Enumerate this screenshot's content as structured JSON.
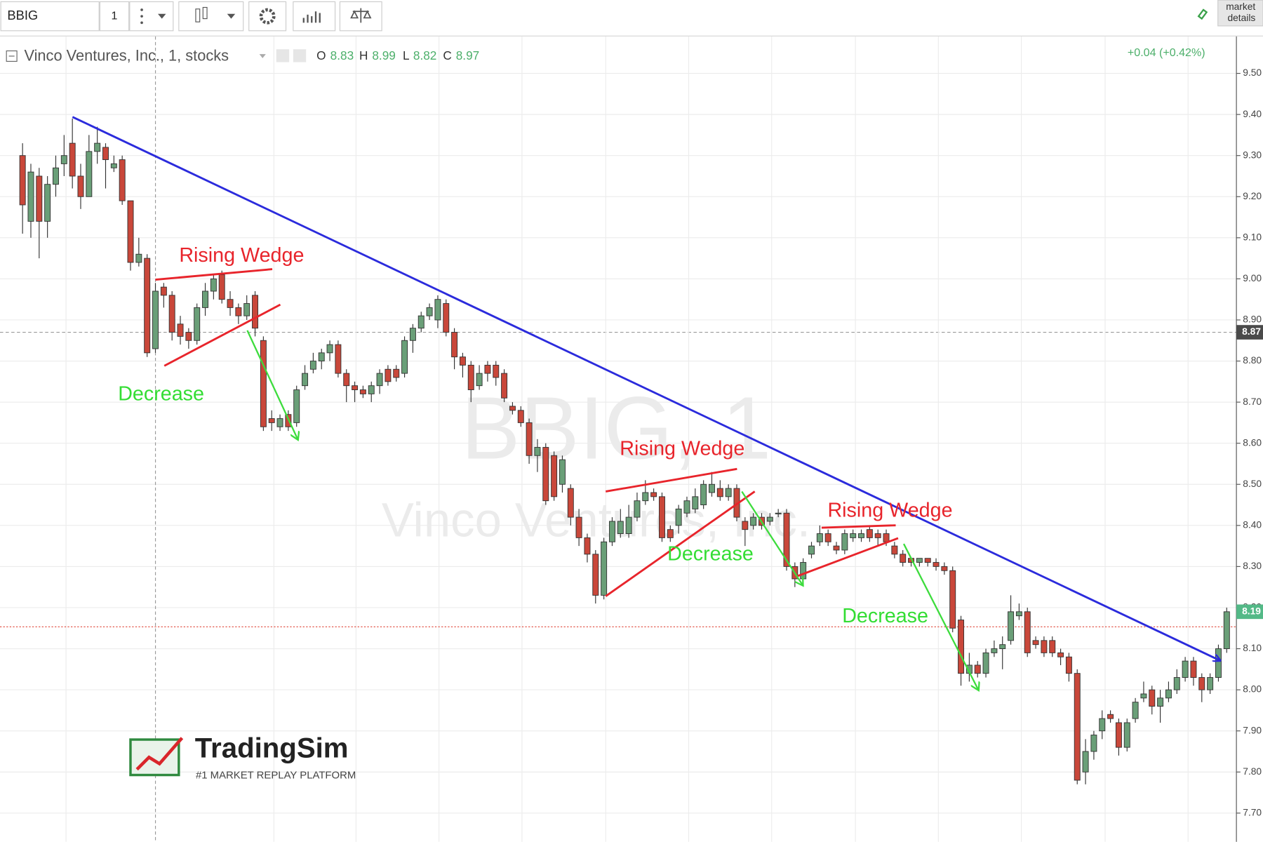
{
  "toolbar": {
    "symbol": "BBIG",
    "interval": "1",
    "market_details": [
      "market",
      "details"
    ]
  },
  "chart_data": {
    "type": "candlestick",
    "title": "Vinco Ventures, Inc., 1, stocks",
    "ohlc_letters": [
      "O",
      "H",
      "L",
      "C"
    ],
    "change": "+0.04 (+0.42%)",
    "watermark": {
      "symbol_interval": "BBIG, 1",
      "name": "Vinco Ventures, Inc."
    },
    "up_color": "#6a9f78",
    "down_color": "#c9473a",
    "crosshair_price": 8.87,
    "ylim": [
      7.63,
      9.59
    ],
    "yticks": [
      {
        "value": 7.7,
        "label": "7.70"
      },
      {
        "value": 7.8,
        "label": "7.80"
      },
      {
        "value": 7.9,
        "label": "7.90"
      },
      {
        "value": 8.0,
        "label": "8.00"
      },
      {
        "value": 8.1,
        "label": "8.10"
      },
      {
        "value": 8.2,
        "label": "8.20"
      },
      {
        "value": 8.3,
        "label": "8.30"
      },
      {
        "value": 8.4,
        "label": "8.40"
      },
      {
        "value": 8.5,
        "label": "8.50"
      },
      {
        "value": 8.6,
        "label": "8.60"
      },
      {
        "value": 8.7,
        "label": "8.70"
      },
      {
        "value": 8.8,
        "label": "8.80"
      },
      {
        "value": 8.9,
        "label": "8.90"
      },
      {
        "value": 9.0,
        "label": "9.00"
      },
      {
        "value": 9.1,
        "label": "9.10"
      },
      {
        "value": 9.2,
        "label": "9.20"
      },
      {
        "value": 9.3,
        "label": "9.30"
      },
      {
        "value": 9.4,
        "label": "9.40"
      },
      {
        "value": 9.5,
        "label": "9.50"
      }
    ],
    "grid": true,
    "open": [
      9.3,
      9.14,
      9.25,
      9.14,
      9.23,
      9.28,
      9.33,
      9.25,
      9.2,
      9.31,
      9.32,
      9.27,
      9.29,
      9.19,
      9.04,
      9.05,
      8.83,
      8.98,
      8.96,
      8.89,
      8.87,
      8.85,
      8.93,
      8.97,
      9.01,
      8.95,
      8.93,
      8.91,
      8.96,
      8.85,
      8.66,
      8.64,
      8.67,
      8.65,
      8.74,
      8.78,
      8.8,
      8.82,
      8.84,
      8.77,
      8.74,
      8.73,
      8.72,
      8.74,
      8.78,
      8.78,
      8.77,
      8.85,
      8.88,
      8.91,
      8.9,
      8.94,
      8.87,
      8.81,
      8.79,
      8.74,
      8.79,
      8.79,
      8.77,
      8.69,
      8.68,
      8.65,
      8.57,
      8.59,
      8.57,
      8.5,
      8.49,
      8.42,
      8.37,
      8.33,
      8.23,
      8.36,
      8.38,
      8.38,
      8.42,
      8.46,
      8.48,
      8.47,
      8.39,
      8.4,
      8.43,
      8.44,
      8.45,
      8.48,
      8.49,
      8.47,
      8.49,
      8.41,
      8.4,
      8.42,
      8.41,
      8.43,
      8.43,
      8.3,
      8.27,
      8.33,
      8.36,
      8.38,
      8.35,
      8.34,
      8.37,
      8.37,
      8.39,
      8.38,
      8.38,
      8.35,
      8.33,
      8.32,
      8.31,
      8.32,
      8.31,
      8.3,
      8.29,
      8.17,
      8.04,
      8.06,
      8.04,
      8.09,
      8.1,
      8.12,
      8.18,
      8.19,
      8.12,
      8.12,
      8.12,
      8.09,
      8.08,
      8.04,
      7.8,
      7.85,
      7.9,
      7.94,
      7.92,
      7.86,
      7.93,
      7.98,
      8.0,
      7.96,
      7.98,
      8.0,
      8.03,
      8.07,
      8.03,
      8.0,
      8.03,
      8.1
    ],
    "high": [
      9.33,
      9.28,
      9.27,
      9.25,
      9.3,
      9.35,
      9.39,
      9.28,
      9.35,
      9.37,
      9.33,
      9.3,
      9.3,
      9.19,
      9.1,
      9.06,
      8.99,
      8.99,
      8.97,
      8.91,
      8.88,
      8.94,
      8.99,
      9.01,
      9.02,
      8.97,
      8.94,
      8.96,
      8.97,
      8.86,
      8.68,
      8.67,
      8.68,
      8.74,
      8.79,
      8.82,
      8.83,
      8.85,
      8.85,
      8.78,
      8.75,
      8.74,
      8.75,
      8.78,
      8.79,
      8.79,
      8.86,
      8.89,
      8.92,
      8.94,
      8.96,
      8.95,
      8.88,
      8.82,
      8.8,
      8.79,
      8.8,
      8.8,
      8.78,
      8.7,
      8.69,
      8.66,
      8.61,
      8.6,
      8.58,
      8.57,
      8.5,
      8.44,
      8.38,
      8.34,
      8.37,
      8.42,
      8.44,
      8.45,
      8.48,
      8.51,
      8.49,
      8.48,
      8.4,
      8.45,
      8.47,
      8.49,
      8.51,
      8.53,
      8.51,
      8.5,
      8.5,
      8.42,
      8.43,
      8.43,
      8.43,
      8.44,
      8.44,
      8.31,
      8.32,
      8.36,
      8.4,
      8.39,
      8.36,
      8.39,
      8.39,
      8.39,
      8.4,
      8.39,
      8.39,
      8.36,
      8.34,
      8.32,
      8.32,
      8.32,
      8.32,
      8.31,
      8.3,
      8.18,
      8.09,
      8.07,
      8.1,
      8.12,
      8.13,
      8.23,
      8.21,
      8.2,
      8.13,
      8.13,
      8.13,
      8.1,
      8.09,
      8.05,
      7.88,
      7.9,
      7.95,
      7.95,
      7.93,
      7.93,
      7.98,
      8.02,
      8.01,
      8.0,
      8.02,
      8.05,
      8.08,
      8.08,
      8.04,
      8.04,
      8.11,
      8.2
    ],
    "low": [
      9.11,
      9.1,
      9.05,
      9.1,
      9.2,
      9.25,
      9.22,
      9.17,
      9.2,
      9.28,
      9.22,
      9.26,
      9.18,
      9.02,
      9.03,
      8.81,
      8.82,
      8.93,
      8.85,
      8.84,
      8.83,
      8.84,
      8.91,
      8.95,
      8.94,
      8.91,
      8.89,
      8.9,
      8.86,
      8.63,
      8.63,
      8.63,
      8.63,
      8.64,
      8.73,
      8.77,
      8.78,
      8.8,
      8.76,
      8.7,
      8.7,
      8.71,
      8.7,
      8.72,
      8.74,
      8.75,
      8.76,
      8.82,
      8.87,
      8.9,
      8.88,
      8.86,
      8.78,
      8.76,
      8.7,
      8.73,
      8.75,
      8.74,
      8.7,
      8.67,
      8.64,
      8.55,
      8.53,
      8.45,
      8.46,
      8.48,
      8.4,
      8.35,
      8.31,
      8.21,
      8.22,
      8.35,
      8.37,
      8.37,
      8.41,
      8.45,
      8.46,
      8.36,
      8.36,
      8.38,
      8.42,
      8.43,
      8.44,
      8.47,
      8.46,
      8.46,
      8.41,
      8.35,
      8.39,
      8.39,
      8.4,
      8.42,
      8.29,
      8.25,
      8.26,
      8.32,
      8.35,
      8.35,
      8.33,
      8.33,
      8.36,
      8.36,
      8.36,
      8.35,
      8.35,
      8.32,
      8.3,
      8.3,
      8.3,
      8.3,
      8.29,
      8.28,
      8.14,
      8.01,
      8.02,
      8.03,
      8.03,
      8.08,
      8.05,
      8.11,
      8.17,
      8.08,
      8.1,
      8.08,
      8.08,
      8.06,
      8.02,
      7.77,
      7.77,
      7.83,
      7.88,
      7.92,
      7.84,
      7.85,
      7.92,
      7.97,
      7.94,
      7.92,
      7.97,
      7.99,
      8.02,
      8.01,
      7.97,
      7.99,
      8.02,
      8.09
    ],
    "close": [
      9.18,
      9.26,
      9.14,
      9.23,
      9.27,
      9.3,
      9.25,
      9.2,
      9.31,
      9.33,
      9.29,
      9.28,
      9.19,
      9.04,
      9.06,
      8.82,
      8.97,
      8.96,
      8.87,
      8.86,
      8.85,
      8.93,
      8.97,
      9.0,
      8.95,
      8.93,
      8.91,
      8.94,
      8.88,
      8.64,
      8.65,
      8.66,
      8.64,
      8.73,
      8.77,
      8.8,
      8.82,
      8.84,
      8.77,
      8.74,
      8.73,
      8.72,
      8.74,
      8.77,
      8.75,
      8.76,
      8.85,
      8.88,
      8.91,
      8.93,
      8.95,
      8.87,
      8.81,
      8.79,
      8.73,
      8.77,
      8.77,
      8.76,
      8.71,
      8.68,
      8.65,
      8.57,
      8.59,
      8.46,
      8.47,
      8.56,
      8.42,
      8.37,
      8.33,
      8.23,
      8.36,
      8.41,
      8.41,
      8.42,
      8.46,
      8.48,
      8.47,
      8.37,
      8.37,
      8.44,
      8.46,
      8.47,
      8.5,
      8.5,
      8.47,
      8.49,
      8.42,
      8.39,
      8.42,
      8.4,
      8.42,
      8.43,
      8.3,
      8.27,
      8.31,
      8.35,
      8.38,
      8.36,
      8.34,
      8.38,
      8.38,
      8.38,
      8.37,
      8.37,
      8.36,
      8.33,
      8.31,
      8.31,
      8.32,
      8.31,
      8.3,
      8.29,
      8.15,
      8.04,
      8.06,
      8.04,
      8.09,
      8.1,
      8.11,
      8.19,
      8.19,
      8.09,
      8.11,
      8.09,
      8.09,
      8.08,
      8.04,
      7.78,
      7.85,
      7.89,
      7.93,
      7.93,
      7.86,
      7.92,
      7.97,
      7.99,
      7.96,
      7.98,
      8.0,
      8.03,
      8.07,
      8.03,
      8.0,
      8.03,
      8.1,
      8.19
    ],
    "annotations": {
      "pattern_labels": [
        "Rising Wedge",
        "Rising Wedge",
        "Rising Wedge"
      ],
      "move_labels": [
        "Decrease",
        "Decrease",
        "Decrease"
      ]
    }
  },
  "logo": {
    "name": "TradingSim",
    "tagline": "#1 MARKET REPLAY PLATFORM"
  }
}
